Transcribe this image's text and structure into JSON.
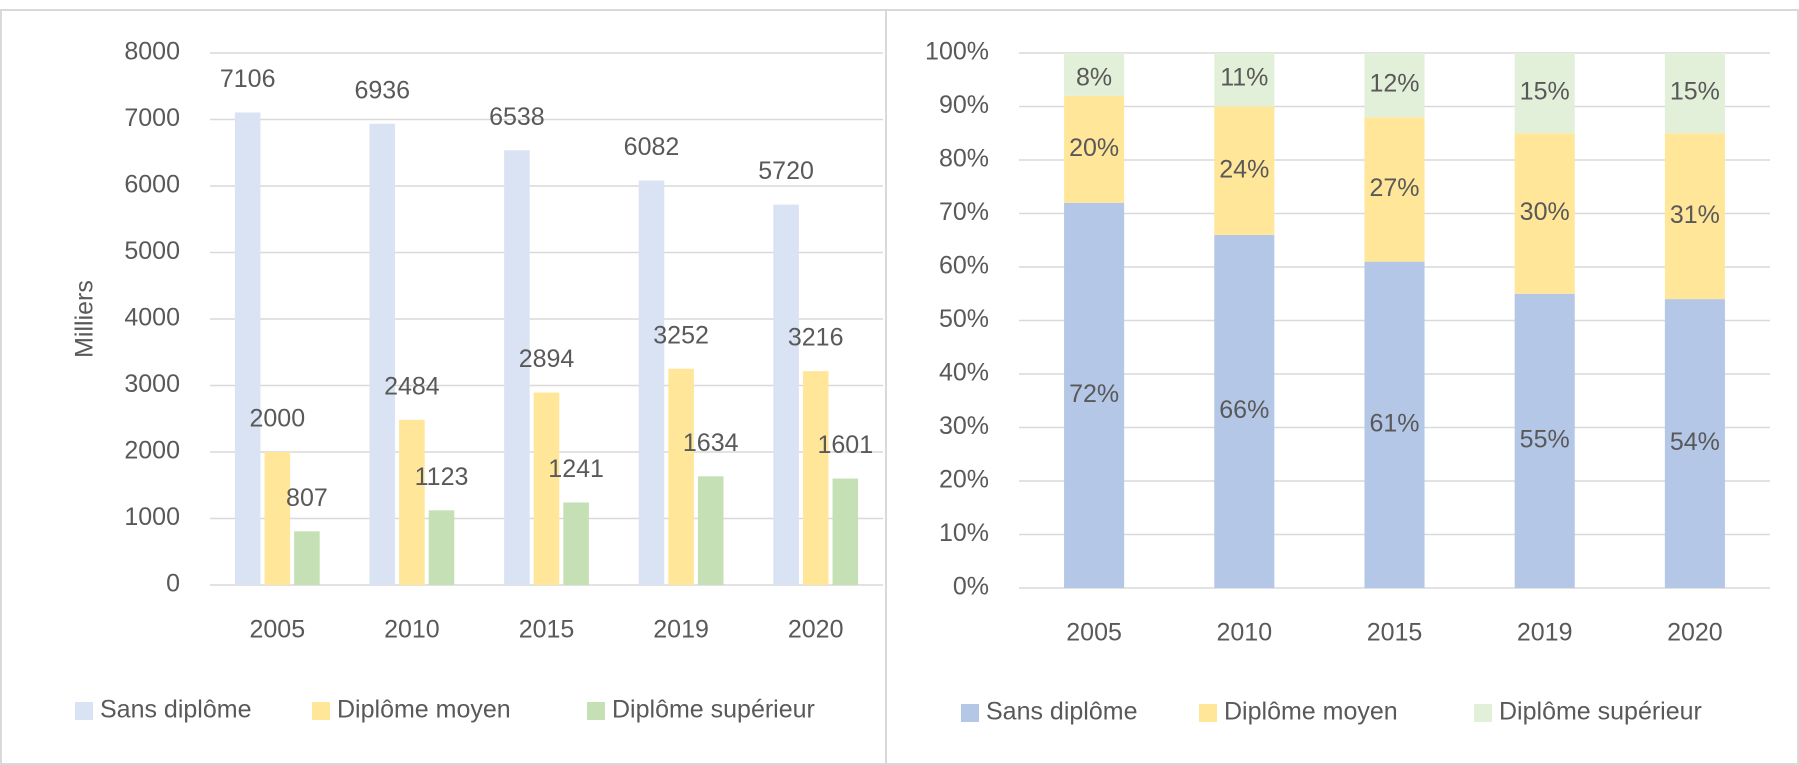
{
  "chart_data": [
    {
      "type": "bar",
      "y_label": "Milliers",
      "categories": [
        "2005",
        "2010",
        "2015",
        "2019",
        "2020"
      ],
      "series": [
        {
          "name": "Sans diplôme",
          "color": "#dae3f3",
          "values": [
            7106,
            6936,
            6538,
            6082,
            5720
          ]
        },
        {
          "name": "Diplôme moyen",
          "color": "#ffe699",
          "values": [
            2000,
            2484,
            2894,
            3252,
            3216
          ]
        },
        {
          "name": "Diplôme supérieur",
          "color": "#c5e0b4",
          "values": [
            807,
            1123,
            1241,
            1634,
            1601
          ]
        }
      ],
      "ylim": [
        0,
        8000
      ],
      "yticks": [
        0,
        1000,
        2000,
        3000,
        4000,
        5000,
        6000,
        7000,
        8000
      ],
      "grid": true,
      "legend": "bottom"
    },
    {
      "type": "stacked_bar",
      "categories": [
        "2005",
        "2010",
        "2015",
        "2019",
        "2020"
      ],
      "series": [
        {
          "name": "Sans diplôme",
          "color": "#b4c7e7",
          "values": [
            72,
            66,
            61,
            55,
            54
          ],
          "value_labels": [
            "72%",
            "66%",
            "61%",
            "55%",
            "54%"
          ]
        },
        {
          "name": "Diplôme moyen",
          "color": "#ffe699",
          "values": [
            20,
            24,
            27,
            30,
            31
          ],
          "value_labels": [
            "20%",
            "24%",
            "27%",
            "30%",
            "31%"
          ]
        },
        {
          "name": "Diplôme supérieur",
          "color": "#e2f0d9",
          "values": [
            8,
            11,
            12,
            15,
            15
          ],
          "value_labels": [
            "8%",
            "11%",
            "12%",
            "15%",
            "15%"
          ]
        }
      ],
      "ylim": [
        0,
        100
      ],
      "yticks": [
        {
          "value": 0,
          "label": "0%"
        },
        {
          "value": 10,
          "label": "10%"
        },
        {
          "value": 20,
          "label": "20%"
        },
        {
          "value": 30,
          "label": "30%"
        },
        {
          "value": 40,
          "label": "40%"
        },
        {
          "value": 50,
          "label": "50%"
        },
        {
          "value": 60,
          "label": "60%"
        },
        {
          "value": 70,
          "label": "70%"
        },
        {
          "value": 80,
          "label": "80%"
        },
        {
          "value": 90,
          "label": "90%"
        },
        {
          "value": 100,
          "label": "100%"
        }
      ],
      "grid": true,
      "legend": "bottom"
    }
  ]
}
